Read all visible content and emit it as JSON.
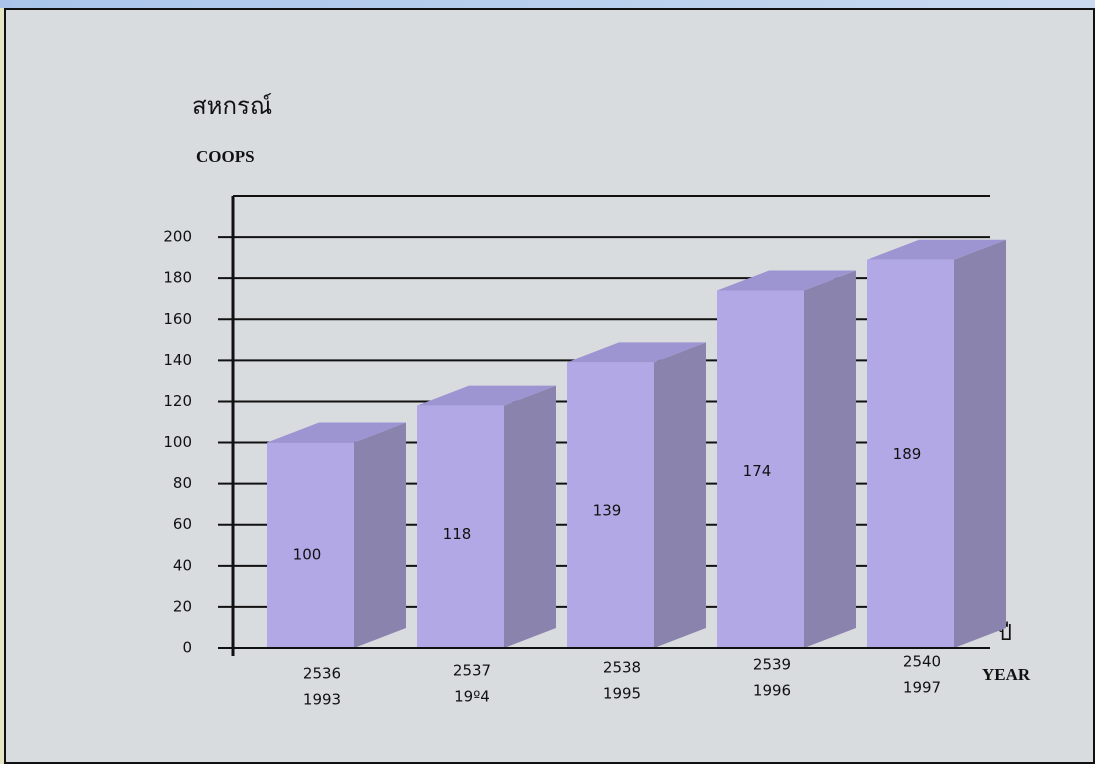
{
  "chart_data": {
    "type": "bar3d",
    "y_label_thai": "สหกรณ์",
    "y_label": "COOPS",
    "x_label_thai": "ปี",
    "x_label": "YEAR",
    "categories": [
      [
        "2536",
        "1993"
      ],
      [
        "2537",
        "19º4"
      ],
      [
        "2538",
        "1995"
      ],
      [
        "2539",
        "1996"
      ],
      [
        "2540",
        "1997"
      ]
    ],
    "values": [
      100,
      118,
      139,
      174,
      189
    ],
    "color": "#b3a8e6",
    "ylim": [
      0,
      220
    ],
    "yticks": [
      0,
      20,
      40,
      60,
      80,
      100,
      120,
      140,
      160,
      180,
      200
    ],
    "grid": true
  }
}
